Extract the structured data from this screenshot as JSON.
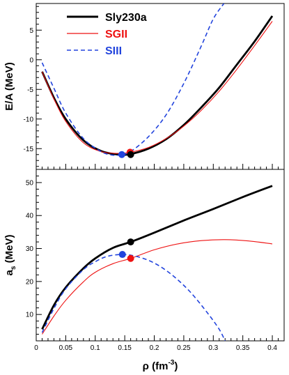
{
  "chart_data": [
    {
      "type": "line",
      "ylabel": "E/A (MeV)",
      "xlim": [
        0,
        0.42
      ],
      "ylim": [
        -18.5,
        9.5
      ],
      "yticks": [
        -15,
        -10,
        -5,
        0,
        5
      ],
      "legend": {
        "placement": "top-left",
        "entries": [
          {
            "label": "Sly230a",
            "color": "#000000"
          },
          {
            "label": "SGII",
            "color": "#ee1111"
          },
          {
            "label": "SIII",
            "color": "#2244dd"
          }
        ]
      },
      "series": [
        {
          "key": "sly",
          "color": "#000000",
          "style": "solid-thick",
          "points": [
            [
              0.01,
              -2.0
            ],
            [
              0.03,
              -6.4
            ],
            [
              0.05,
              -10.0
            ],
            [
              0.08,
              -13.6
            ],
            [
              0.11,
              -15.4
            ],
            [
              0.14,
              -16.0
            ],
            [
              0.16,
              -15.9
            ],
            [
              0.19,
              -15.0
            ],
            [
              0.22,
              -13.4
            ],
            [
              0.25,
              -11.0
            ],
            [
              0.28,
              -8.0
            ],
            [
              0.31,
              -4.7
            ],
            [
              0.34,
              -0.8
            ],
            [
              0.37,
              3.1
            ],
            [
              0.4,
              7.4
            ]
          ]
        },
        {
          "key": "sgii",
          "color": "#ee1111",
          "style": "solid-thin",
          "points": [
            [
              0.01,
              -2.0
            ],
            [
              0.03,
              -6.6
            ],
            [
              0.05,
              -10.4
            ],
            [
              0.08,
              -14.0
            ],
            [
              0.11,
              -15.5
            ],
            [
              0.14,
              -15.8
            ],
            [
              0.16,
              -15.6
            ],
            [
              0.19,
              -14.8
            ],
            [
              0.22,
              -13.3
            ],
            [
              0.25,
              -11.2
            ],
            [
              0.28,
              -8.5
            ],
            [
              0.31,
              -5.3
            ],
            [
              0.34,
              -1.6
            ],
            [
              0.37,
              2.4
            ],
            [
              0.4,
              6.5
            ]
          ]
        },
        {
          "key": "siii",
          "color": "#2244dd",
          "style": "dashed",
          "points": [
            [
              0.01,
              -0.5
            ],
            [
              0.03,
              -4.8
            ],
            [
              0.05,
              -9.0
            ],
            [
              0.08,
              -13.3
            ],
            [
              0.11,
              -15.5
            ],
            [
              0.13,
              -16.1
            ],
            [
              0.145,
              -16.0
            ],
            [
              0.16,
              -15.5
            ],
            [
              0.19,
              -13.0
            ],
            [
              0.22,
              -9.3
            ],
            [
              0.25,
              -4.0
            ],
            [
              0.28,
              2.4
            ],
            [
              0.3,
              6.9
            ],
            [
              0.318,
              9.5
            ]
          ]
        }
      ],
      "saturation_points": [
        {
          "key": "siii",
          "x": 0.145,
          "y": -16.0
        },
        {
          "key": "sgii",
          "x": 0.159,
          "y": -15.6
        },
        {
          "key": "sly",
          "x": 0.16,
          "y": -16.0
        }
      ]
    },
    {
      "type": "line",
      "ylabel": "a",
      "ylabel_sub": "s",
      "ylabel_suffix": " (MeV)",
      "xlabel": "ρ (fm",
      "xlabel_sup": "-3",
      "xlabel_suffix": ")",
      "xlim": [
        0,
        0.42
      ],
      "ylim": [
        2,
        54
      ],
      "xticks": [
        "0",
        "0.05",
        "0.1",
        "0.15",
        "0.2",
        "0.25",
        "0.3",
        "0.35",
        "0.4"
      ],
      "xtick_values": [
        0,
        0.05,
        0.1,
        0.15,
        0.2,
        0.25,
        0.3,
        0.35,
        0.4
      ],
      "yticks": [
        10,
        20,
        30,
        40,
        50
      ],
      "series": [
        {
          "key": "sly",
          "color": "#000000",
          "style": "solid-thick",
          "points": [
            [
              0.01,
              5.5
            ],
            [
              0.03,
              12.8
            ],
            [
              0.05,
              18.2
            ],
            [
              0.08,
              24.0
            ],
            [
              0.1,
              27.0
            ],
            [
              0.13,
              30.2
            ],
            [
              0.16,
              32.0
            ],
            [
              0.2,
              34.8
            ],
            [
              0.25,
              38.5
            ],
            [
              0.3,
              42.0
            ],
            [
              0.35,
              45.6
            ],
            [
              0.4,
              49.0
            ]
          ]
        },
        {
          "key": "sgii",
          "color": "#ee1111",
          "style": "solid-thin",
          "points": [
            [
              0.01,
              4.0
            ],
            [
              0.03,
              9.5
            ],
            [
              0.05,
              14.3
            ],
            [
              0.08,
              19.9
            ],
            [
              0.1,
              22.8
            ],
            [
              0.13,
              25.4
            ],
            [
              0.16,
              27.0
            ],
            [
              0.2,
              29.6
            ],
            [
              0.24,
              31.4
            ],
            [
              0.28,
              32.4
            ],
            [
              0.32,
              32.7
            ],
            [
              0.36,
              32.3
            ],
            [
              0.4,
              31.4
            ]
          ]
        },
        {
          "key": "siii",
          "color": "#2244dd",
          "style": "dashed",
          "points": [
            [
              0.01,
              4.5
            ],
            [
              0.03,
              11.8
            ],
            [
              0.05,
              17.8
            ],
            [
              0.08,
              23.6
            ],
            [
              0.1,
              26.0
            ],
            [
              0.12,
              27.6
            ],
            [
              0.145,
              28.2
            ],
            [
              0.17,
              27.6
            ],
            [
              0.2,
              25.6
            ],
            [
              0.23,
              22.0
            ],
            [
              0.26,
              17.0
            ],
            [
              0.29,
              10.5
            ],
            [
              0.31,
              5.5
            ],
            [
              0.32,
              2.0
            ]
          ]
        }
      ],
      "saturation_points": [
        {
          "key": "siii",
          "x": 0.146,
          "y": 28.2
        },
        {
          "key": "sgii",
          "x": 0.16,
          "y": 27.0
        },
        {
          "key": "sly",
          "x": 0.16,
          "y": 32.0
        }
      ]
    }
  ]
}
